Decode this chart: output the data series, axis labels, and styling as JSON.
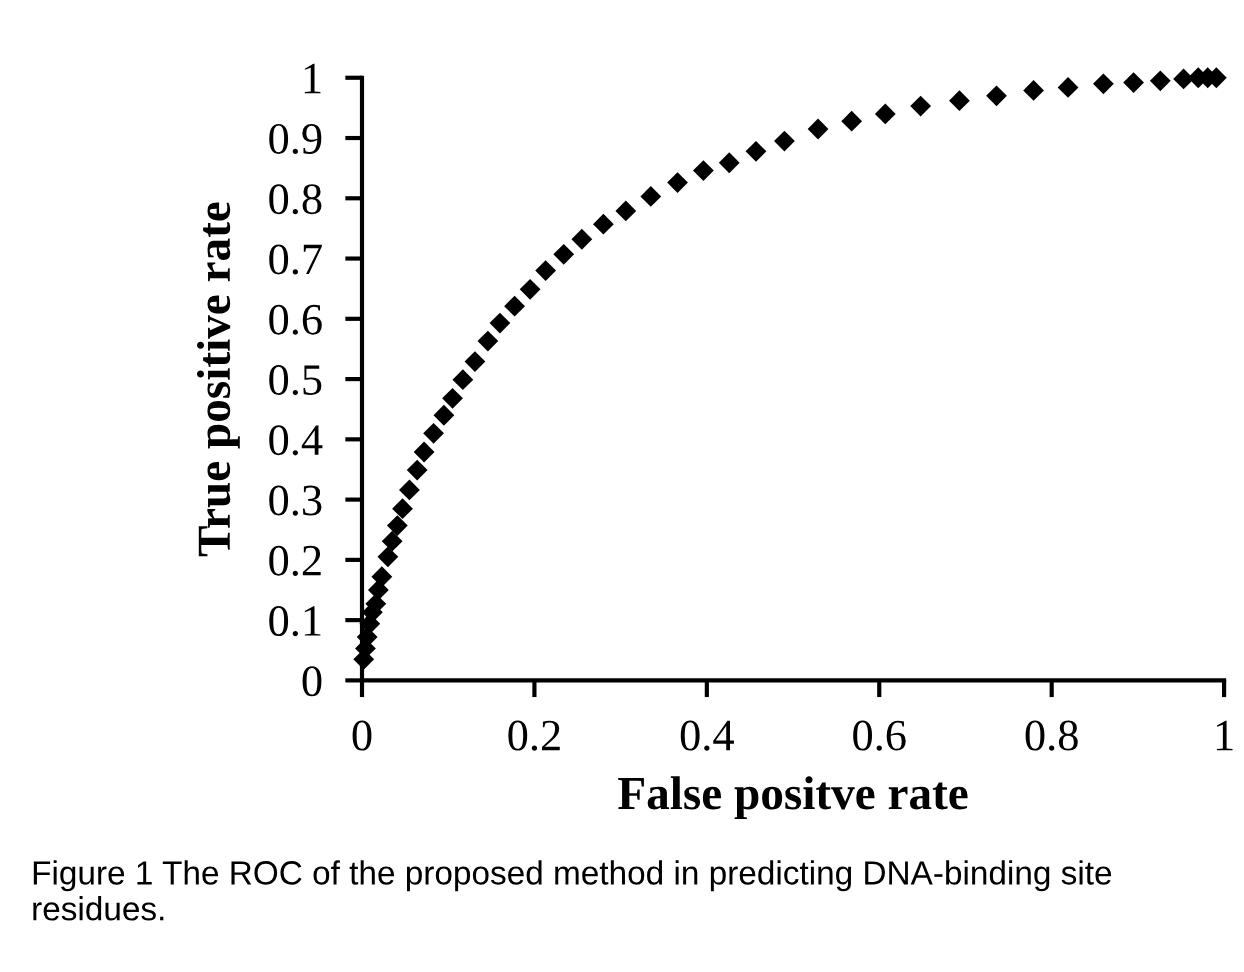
{
  "chart_data": {
    "type": "scatter",
    "xlabel": "False positve rate",
    "ylabel": "True positive rate",
    "x": [
      0.002,
      0.004,
      0.006,
      0.009,
      0.012,
      0.016,
      0.019,
      0.023,
      0.03,
      0.035,
      0.041,
      0.047,
      0.055,
      0.064,
      0.072,
      0.083,
      0.095,
      0.105,
      0.117,
      0.131,
      0.146,
      0.16,
      0.177,
      0.195,
      0.213,
      0.234,
      0.255,
      0.28,
      0.306,
      0.335,
      0.366,
      0.396,
      0.426,
      0.457,
      0.49,
      0.529,
      0.568,
      0.607,
      0.648,
      0.693,
      0.736,
      0.779,
      0.819,
      0.86,
      0.895,
      0.926,
      0.953,
      0.97,
      0.981,
      0.991
    ],
    "series": [
      {
        "color": "#000000",
        "values": [
          0.035,
          0.053,
          0.072,
          0.094,
          0.113,
          0.127,
          0.15,
          0.172,
          0.205,
          0.231,
          0.257,
          0.285,
          0.316,
          0.349,
          0.379,
          0.41,
          0.44,
          0.468,
          0.499,
          0.529,
          0.563,
          0.593,
          0.621,
          0.649,
          0.68,
          0.707,
          0.732,
          0.757,
          0.779,
          0.803,
          0.826,
          0.846,
          0.859,
          0.878,
          0.895,
          0.915,
          0.928,
          0.94,
          0.953,
          0.962,
          0.97,
          0.979,
          0.984,
          0.99,
          0.992,
          0.995,
          0.998,
          1.0,
          1.0,
          1.0
        ]
      }
    ],
    "xlim": [
      0,
      1
    ],
    "ylim": [
      0,
      1
    ],
    "xticks": [
      0,
      0.2,
      0.4,
      0.6,
      0.8,
      1
    ],
    "yticks": [
      0,
      0.1,
      0.2,
      0.3,
      0.4,
      0.5,
      0.6,
      0.7,
      0.8,
      0.9,
      1
    ],
    "marker": "diamond",
    "grid": false,
    "legend": false,
    "annotations": [
      "Figure 1 The ROC of the proposed method in predicting DNA-binding site residues."
    ]
  }
}
